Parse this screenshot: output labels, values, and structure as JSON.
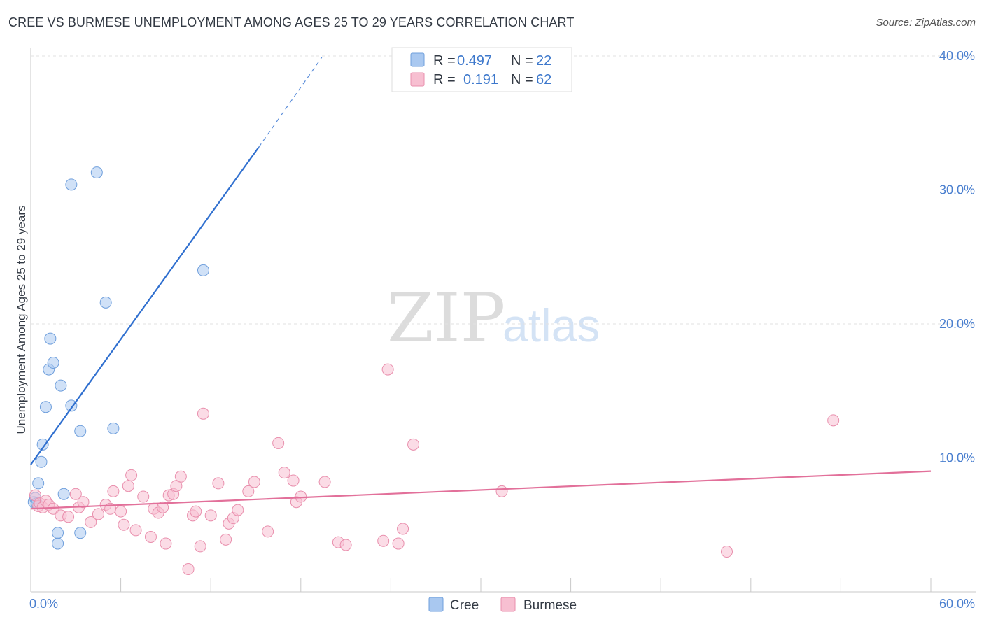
{
  "title": "CREE VS BURMESE UNEMPLOYMENT AMONG AGES 25 TO 29 YEARS CORRELATION CHART",
  "source": "Source: ZipAtlas.com",
  "watermark": {
    "part1": "ZIP",
    "part2": "atlas"
  },
  "legend_top": [
    {
      "r_label": "R =",
      "r_value": "0.497",
      "n_label": "N =",
      "n_value": "22",
      "color": "#a9c8f0",
      "stroke": "#6f9fdc"
    },
    {
      "r_label": "R =",
      "r_value": "0.191",
      "n_label": "N =",
      "n_value": "62",
      "color": "#f7bfd1",
      "stroke": "#e98fad"
    }
  ],
  "legend_bottom": [
    {
      "label": "Cree",
      "color": "#a9c8f0",
      "stroke": "#6f9fdc"
    },
    {
      "label": "Burmese",
      "color": "#f7bfd1",
      "stroke": "#e98fad"
    }
  ],
  "chart_data": {
    "type": "scatter",
    "title": "CREE VS BURMESE UNEMPLOYMENT AMONG AGES 25 TO 29 YEARS CORRELATION CHART",
    "xlabel": "",
    "ylabel": "Unemployment Among Ages 25 to 29 years",
    "xlim": [
      0,
      60
    ],
    "ylim": [
      0,
      40
    ],
    "x_tick_labels": [
      "0.0%",
      "60.0%"
    ],
    "y_ticks": [
      10,
      20,
      30,
      40
    ],
    "y_tick_labels": [
      "10.0%",
      "20.0%",
      "30.0%",
      "40.0%"
    ],
    "grid": true,
    "series": [
      {
        "name": "Cree",
        "color": "#a9c8f0",
        "stroke": "#6f9fdc",
        "line_color": "#2f6fcf",
        "trend": {
          "x0": 0.0,
          "y0": 9.5,
          "x1": 15.2,
          "y1": 33.2,
          "dash_to_x": 19.4,
          "dash_to_y": 39.9
        },
        "points": [
          [
            0.2,
            6.7
          ],
          [
            0.3,
            7.0
          ],
          [
            0.5,
            8.1
          ],
          [
            0.7,
            9.7
          ],
          [
            0.8,
            11.0
          ],
          [
            1.0,
            13.8
          ],
          [
            1.2,
            16.6
          ],
          [
            1.3,
            18.9
          ],
          [
            1.5,
            17.1
          ],
          [
            1.8,
            3.6
          ],
          [
            1.8,
            4.4
          ],
          [
            2.0,
            15.4
          ],
          [
            2.2,
            7.3
          ],
          [
            2.7,
            30.4
          ],
          [
            2.7,
            13.9
          ],
          [
            3.3,
            12.0
          ],
          [
            3.3,
            4.4
          ],
          [
            4.4,
            31.3
          ],
          [
            5.0,
            21.6
          ],
          [
            5.5,
            12.2
          ],
          [
            11.5,
            24.0
          ],
          [
            0.4,
            6.6
          ]
        ]
      },
      {
        "name": "Burmese",
        "color": "#f7bfd1",
        "stroke": "#e98fad",
        "line_color": "#e2709a",
        "trend": {
          "x0": 0.0,
          "y0": 6.2,
          "x1": 60.0,
          "y1": 9.0
        },
        "points": [
          [
            0.3,
            7.2
          ],
          [
            0.5,
            6.4
          ],
          [
            0.6,
            6.6
          ],
          [
            0.8,
            6.3
          ],
          [
            1.0,
            6.8
          ],
          [
            1.2,
            6.5
          ],
          [
            1.5,
            6.2
          ],
          [
            2.0,
            5.7
          ],
          [
            2.5,
            5.6
          ],
          [
            3.0,
            7.3
          ],
          [
            3.2,
            6.3
          ],
          [
            3.5,
            6.7
          ],
          [
            4.0,
            5.2
          ],
          [
            4.5,
            5.8
          ],
          [
            5.0,
            6.5
          ],
          [
            5.3,
            6.2
          ],
          [
            5.5,
            7.5
          ],
          [
            6.0,
            6.0
          ],
          [
            6.2,
            5.0
          ],
          [
            6.5,
            7.9
          ],
          [
            6.7,
            8.7
          ],
          [
            7.0,
            4.6
          ],
          [
            7.5,
            7.1
          ],
          [
            8.0,
            4.1
          ],
          [
            8.2,
            6.2
          ],
          [
            8.5,
            5.9
          ],
          [
            8.8,
            6.3
          ],
          [
            9.0,
            3.6
          ],
          [
            9.2,
            7.2
          ],
          [
            9.5,
            7.3
          ],
          [
            9.7,
            7.9
          ],
          [
            10.0,
            8.6
          ],
          [
            10.5,
            1.7
          ],
          [
            10.8,
            5.7
          ],
          [
            11.0,
            6.0
          ],
          [
            11.3,
            3.4
          ],
          [
            11.5,
            13.3
          ],
          [
            12.0,
            5.7
          ],
          [
            12.5,
            8.1
          ],
          [
            13.0,
            3.9
          ],
          [
            13.2,
            5.1
          ],
          [
            13.5,
            5.5
          ],
          [
            13.8,
            6.1
          ],
          [
            14.5,
            7.5
          ],
          [
            14.9,
            8.2
          ],
          [
            15.8,
            4.5
          ],
          [
            16.5,
            11.1
          ],
          [
            16.9,
            8.9
          ],
          [
            17.5,
            8.3
          ],
          [
            17.7,
            6.7
          ],
          [
            19.6,
            8.2
          ],
          [
            20.5,
            3.7
          ],
          [
            21.0,
            3.5
          ],
          [
            23.5,
            3.8
          ],
          [
            23.8,
            16.6
          ],
          [
            24.5,
            3.6
          ],
          [
            24.8,
            4.7
          ],
          [
            25.5,
            11.0
          ],
          [
            31.4,
            7.5
          ],
          [
            46.4,
            3.0
          ],
          [
            53.5,
            12.8
          ],
          [
            18.0,
            7.1
          ]
        ]
      }
    ]
  }
}
